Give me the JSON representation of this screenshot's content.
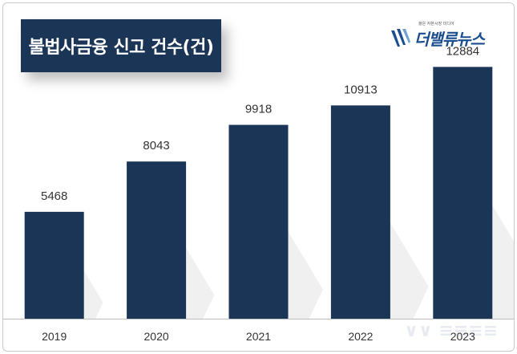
{
  "header": {
    "title": "불법사금융 신고 건수(건)"
  },
  "logo": {
    "name": "더밸류뉴스",
    "tagline": "옳은 자본시장 미디어",
    "brand_color": "#1b4e8f"
  },
  "chart_data": {
    "type": "bar",
    "categories": [
      "2019",
      "2020",
      "2021",
      "2022",
      "2023"
    ],
    "values": [
      5468,
      8043,
      9918,
      10913,
      12884
    ],
    "title": "불법사금융 신고 건수(건)",
    "xlabel": "",
    "ylabel": "",
    "ylim": [
      0,
      14500
    ],
    "grid": false,
    "bar_color": "#1b3556"
  }
}
